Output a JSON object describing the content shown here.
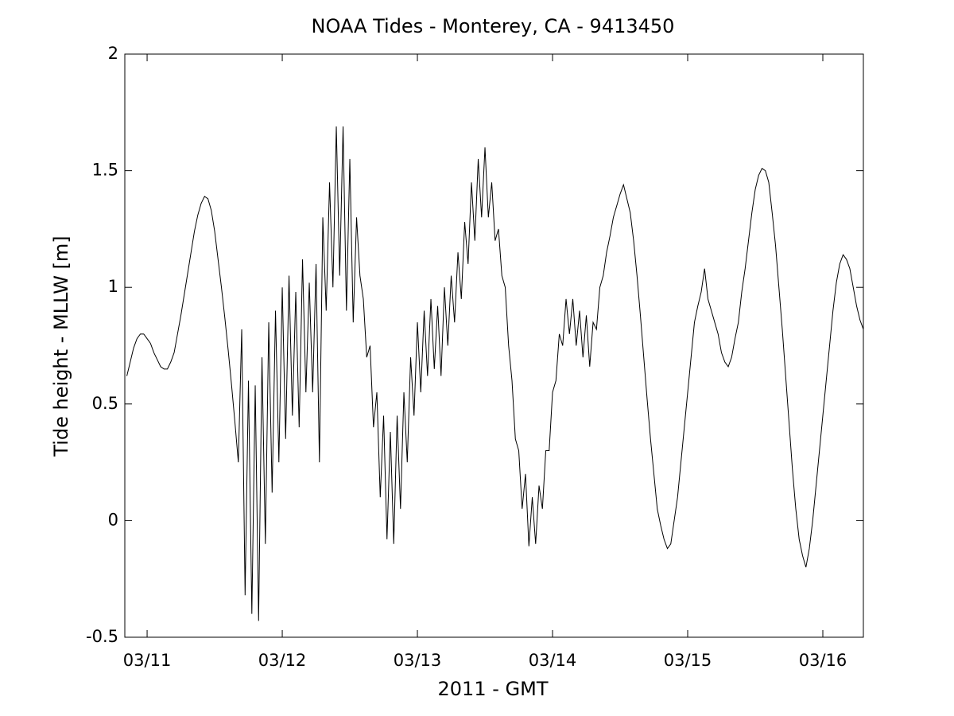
{
  "chart_data": {
    "type": "line",
    "title": "NOAA Tides - Monterey, CA - 9413450",
    "x_label": "2011 - GMT",
    "y_label": "Tide height - MLLW [m]",
    "xlim": [
      10.835,
      16.3
    ],
    "ylim": [
      -0.5,
      2
    ],
    "xticks": [
      {
        "value": 11,
        "label": "03/11"
      },
      {
        "value": 12,
        "label": "03/12"
      },
      {
        "value": 13,
        "label": "03/13"
      },
      {
        "value": 14,
        "label": "03/14"
      },
      {
        "value": 15,
        "label": "03/15"
      },
      {
        "value": 16,
        "label": "03/16"
      }
    ],
    "yticks": [
      -0.5,
      0,
      0.5,
      1,
      1.5,
      2
    ],
    "grid": false,
    "series": [
      {
        "color": "#000000",
        "x": [
          10.85,
          10.875,
          10.9,
          10.925,
          10.95,
          10.975,
          11,
          11.025,
          11.05,
          11.075,
          11.1,
          11.125,
          11.15,
          11.175,
          11.2,
          11.225,
          11.25,
          11.275,
          11.3,
          11.325,
          11.35,
          11.375,
          11.4,
          11.425,
          11.45,
          11.475,
          11.5,
          11.525,
          11.55,
          11.575,
          11.6,
          11.625,
          11.65,
          11.675,
          11.7,
          11.725,
          11.75,
          11.775,
          11.8,
          11.825,
          11.85,
          11.875,
          11.9,
          11.925,
          11.95,
          11.975,
          12,
          12.025,
          12.05,
          12.075,
          12.1,
          12.125,
          12.15,
          12.175,
          12.2,
          12.225,
          12.25,
          12.275,
          12.3,
          12.325,
          12.35,
          12.375,
          12.4,
          12.425,
          12.45,
          12.475,
          12.5,
          12.525,
          12.55,
          12.575,
          12.6,
          12.625,
          12.65,
          12.675,
          12.7,
          12.725,
          12.75,
          12.775,
          12.8,
          12.825,
          12.85,
          12.875,
          12.9,
          12.925,
          12.95,
          12.975,
          13,
          13.025,
          13.05,
          13.075,
          13.1,
          13.125,
          13.15,
          13.175,
          13.2,
          13.225,
          13.25,
          13.275,
          13.3,
          13.325,
          13.35,
          13.375,
          13.4,
          13.425,
          13.45,
          13.475,
          13.5,
          13.525,
          13.55,
          13.575,
          13.6,
          13.625,
          13.65,
          13.675,
          13.7,
          13.725,
          13.75,
          13.775,
          13.8,
          13.825,
          13.85,
          13.875,
          13.9,
          13.925,
          13.95,
          13.975,
          14,
          14.025,
          14.05,
          14.075,
          14.1,
          14.125,
          14.15,
          14.175,
          14.2,
          14.225,
          14.25,
          14.275,
          14.3,
          14.325,
          14.35,
          14.375,
          14.4,
          14.425,
          14.45,
          14.475,
          14.5,
          14.525,
          14.55,
          14.575,
          14.6,
          14.625,
          14.65,
          14.675,
          14.7,
          14.725,
          14.75,
          14.775,
          14.8,
          14.825,
          14.85,
          14.875,
          14.9,
          14.925,
          14.95,
          14.975,
          15,
          15.025,
          15.05,
          15.075,
          15.1,
          15.125,
          15.15,
          15.175,
          15.2,
          15.225,
          15.25,
          15.275,
          15.3,
          15.325,
          15.35,
          15.375,
          15.4,
          15.425,
          15.45,
          15.475,
          15.5,
          15.525,
          15.55,
          15.575,
          15.6,
          15.625,
          15.65,
          15.675,
          15.7,
          15.725,
          15.75,
          15.775,
          15.8,
          15.825,
          15.85,
          15.875,
          15.9,
          15.925,
          15.95,
          15.975,
          16,
          16.025,
          16.05,
          16.075,
          16.1,
          16.125,
          16.15,
          16.175,
          16.2,
          16.225,
          16.25,
          16.275,
          16.3
        ],
        "values": [
          0.62,
          0.68,
          0.74,
          0.78,
          0.8,
          0.8,
          0.78,
          0.76,
          0.72,
          0.69,
          0.66,
          0.65,
          0.65,
          0.68,
          0.72,
          0.8,
          0.88,
          0.97,
          1.06,
          1.15,
          1.24,
          1.31,
          1.36,
          1.39,
          1.38,
          1.33,
          1.24,
          1.12,
          1.0,
          0.87,
          0.73,
          0.58,
          0.42,
          0.25,
          0.82,
          -0.32,
          0.6,
          -0.4,
          0.58,
          -0.43,
          0.7,
          -0.1,
          0.85,
          0.12,
          0.9,
          0.25,
          1.0,
          0.35,
          1.05,
          0.45,
          0.98,
          0.4,
          1.12,
          0.55,
          1.02,
          0.55,
          1.1,
          0.25,
          1.3,
          0.9,
          1.45,
          1.0,
          1.69,
          1.05,
          1.69,
          0.9,
          1.55,
          0.85,
          1.3,
          1.05,
          0.95,
          0.7,
          0.75,
          0.4,
          0.55,
          0.1,
          0.45,
          -0.08,
          0.38,
          -0.1,
          0.45,
          0.05,
          0.55,
          0.25,
          0.7,
          0.45,
          0.85,
          0.55,
          0.9,
          0.62,
          0.95,
          0.65,
          0.92,
          0.62,
          1.0,
          0.75,
          1.05,
          0.85,
          1.15,
          0.95,
          1.28,
          1.1,
          1.45,
          1.2,
          1.55,
          1.3,
          1.6,
          1.3,
          1.45,
          1.2,
          1.25,
          1.05,
          1.0,
          0.75,
          0.6,
          0.35,
          0.3,
          0.05,
          0.2,
          -0.11,
          0.1,
          -0.1,
          0.15,
          0.05,
          0.3,
          0.3,
          0.55,
          0.6,
          0.8,
          0.75,
          0.95,
          0.8,
          0.95,
          0.75,
          0.9,
          0.7,
          0.88,
          0.66,
          0.85,
          0.82,
          1.0,
          1.05,
          1.15,
          1.22,
          1.3,
          1.35,
          1.4,
          1.44,
          1.38,
          1.32,
          1.2,
          1.05,
          0.88,
          0.7,
          0.52,
          0.35,
          0.2,
          0.05,
          -0.02,
          -0.08,
          -0.12,
          -0.1,
          0.0,
          0.1,
          0.25,
          0.4,
          0.55,
          0.7,
          0.85,
          0.92,
          0.98,
          1.08,
          0.95,
          0.9,
          0.85,
          0.8,
          0.72,
          0.68,
          0.66,
          0.7,
          0.78,
          0.85,
          0.98,
          1.08,
          1.2,
          1.32,
          1.42,
          1.48,
          1.51,
          1.5,
          1.45,
          1.32,
          1.18,
          1.0,
          0.82,
          0.62,
          0.42,
          0.22,
          0.05,
          -0.08,
          -0.15,
          -0.2,
          -0.12,
          0.0,
          0.15,
          0.3,
          0.45,
          0.6,
          0.75,
          0.9,
          1.02,
          1.1,
          1.14,
          1.12,
          1.08,
          1.0,
          0.92,
          0.86,
          0.82
        ]
      }
    ]
  }
}
